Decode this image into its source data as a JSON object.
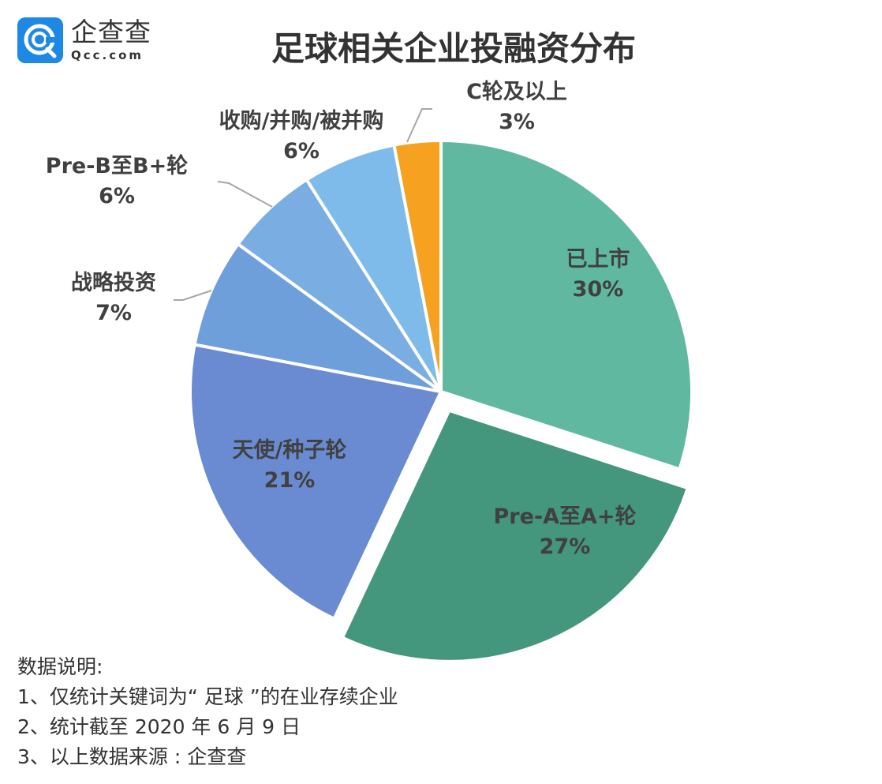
{
  "logo": {
    "cn": "企查查",
    "en": "Qcc.com"
  },
  "title": "足球相关企业投融资分布",
  "chart_data": {
    "type": "pie",
    "title": "足球相关企业投融资分布",
    "categories": [
      "已上市",
      "Pre-A至A+轮",
      "天使/种子轮",
      "战略投资",
      "Pre-B至B+轮",
      "收购/并购/被并购",
      "C轮及以上"
    ],
    "values": [
      30,
      27,
      21,
      7,
      6,
      6,
      3
    ],
    "unit": "%",
    "colors": [
      "#61b8a0",
      "#44967d",
      "#6a8bd1",
      "#6f9fdb",
      "#7aaee2",
      "#7fbbea",
      "#f6a11f"
    ],
    "exploded": [
      "Pre-A至A+轮"
    ],
    "start_angle_deg": 0,
    "direction": "clockwise"
  },
  "labels": [
    {
      "name": "已上市",
      "pct": "30%"
    },
    {
      "name": "Pre-A至A+轮",
      "pct": "27%"
    },
    {
      "name": "天使/种子轮",
      "pct": "21%"
    },
    {
      "name": "战略投资",
      "pct": "7%"
    },
    {
      "name": "Pre-B至B+轮",
      "pct": "6%"
    },
    {
      "name": "收购/并购/被并购",
      "pct": "6%"
    },
    {
      "name": "C轮及以上",
      "pct": "3%"
    }
  ],
  "notes": {
    "heading": "数据说明:",
    "lines": [
      "1、仅统计关键词为“ 足球 ”的在业存续企业",
      "2、统计截至 2020 年 6 月 9 日",
      "3、以上数据来源 : 企查查"
    ]
  }
}
